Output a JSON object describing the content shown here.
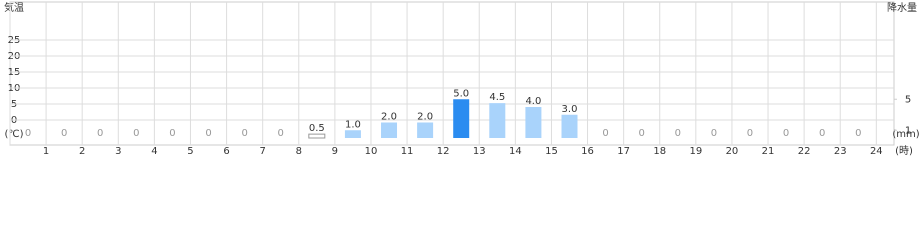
{
  "chart_data": {
    "type": "bar",
    "y_label": "気温",
    "y_unit": "(℃)",
    "y2_label": "降水量",
    "y2_unit": "(mm)",
    "x_unit": "(時)",
    "categories": [
      "1",
      "2",
      "3",
      "4",
      "5",
      "6",
      "7",
      "8",
      "9",
      "10",
      "11",
      "12",
      "13",
      "14",
      "15",
      "16",
      "17",
      "18",
      "19",
      "20",
      "21",
      "22",
      "23",
      "24"
    ],
    "series": [
      {
        "name": "降水量",
        "axis": "y2",
        "values": [
          0,
          0,
          0,
          0,
          0,
          0,
          0,
          0,
          0.5,
          1.0,
          2.0,
          2.0,
          5.0,
          4.5,
          4.0,
          3.0,
          0,
          0,
          0,
          0,
          0,
          0,
          0,
          0
        ],
        "value_labels": [
          "0",
          "0",
          "0",
          "0",
          "0",
          "0",
          "0",
          "0",
          "0.5",
          "1.0",
          "2.0",
          "2.0",
          "5.0",
          "4.5",
          "4.0",
          "3.0",
          "0",
          "0",
          "0",
          "0",
          "0",
          "0",
          "0",
          "0"
        ],
        "colors": [
          "#a9d3fb",
          "#a9d3fb",
          "#a9d3fb",
          "#a9d3fb",
          "#a9d3fb",
          "#a9d3fb",
          "#a9d3fb",
          "#a9d3fb",
          "#ffffff",
          "#a9d3fb",
          "#a9d3fb",
          "#a9d3fb",
          "#2b8cf0",
          "#a9d3fb",
          "#a9d3fb",
          "#a9d3fb",
          "#a9d3fb",
          "#a9d3fb",
          "#a9d3fb",
          "#a9d3fb",
          "#a9d3fb",
          "#a9d3fb",
          "#a9d3fb",
          "#a9d3fb"
        ]
      }
    ],
    "ylim": [
      -5.6,
      33.1
    ],
    "yticks": [
      0,
      5,
      10,
      15,
      20,
      25
    ],
    "y2lim": [
      0,
      16
    ],
    "y2ticks": [
      1,
      5
    ],
    "grid": true
  }
}
